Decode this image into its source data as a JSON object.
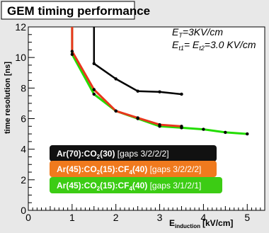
{
  "chart_data": {
    "type": "line",
    "title": "GEM timing performance",
    "xlabel_main": "E",
    "xlabel_sub": "induction",
    "xlabel_unit": "[kV/cm]",
    "ylabel": "time resolution [ns]",
    "xlim": [
      0,
      5.4
    ],
    "ylim": [
      0,
      12
    ],
    "x_ticks": [
      "0",
      "1",
      "2",
      "3",
      "4",
      "5"
    ],
    "y_ticks": [
      "0",
      "2",
      "4",
      "6",
      "8",
      "10",
      "12"
    ],
    "grid": false,
    "annotation": {
      "line1_E": "E",
      "line1_sub": "T",
      "line1_val": "=3KV/cm",
      "line2_E1": "E",
      "line2_sub1": "t1",
      "line2_mid": "= E",
      "line2_sub2": "t2",
      "line2_val": "=3.0 KV/cm"
    },
    "series": [
      {
        "color": "#000000",
        "x": [
          1.5,
          1.5,
          2.0,
          2.5,
          3.0,
          3.5
        ],
        "y": [
          12.0,
          9.6,
          8.6,
          7.8,
          7.75,
          7.6
        ],
        "legend": {
          "text_a": "Ar(70):CO",
          "sub_a": "2",
          "text_b": "(30)",
          "text_c": " [gaps 3/2/2/2]",
          "box_color": "#111111"
        }
      },
      {
        "color": "#e8361c",
        "x": [
          1.0,
          1.0,
          1.5,
          2.0,
          2.5,
          3.0,
          3.5
        ],
        "y": [
          12.0,
          10.4,
          7.9,
          6.5,
          6.05,
          5.6,
          5.5
        ],
        "legend": {
          "text_a": "Ar(45):CO",
          "sub_a": "2",
          "text_b": "(15):CF",
          "sub_b": "4",
          "text_c": "(40)",
          "text_d": " [gaps 3/2/2/2]",
          "box_color": "#f07a1e"
        }
      },
      {
        "color": "#22dd00",
        "x": [
          1.0,
          1.0,
          1.5,
          2.0,
          2.5,
          3.0,
          3.5,
          4.0,
          4.5,
          5.0
        ],
        "y": [
          12.0,
          10.2,
          7.6,
          6.5,
          6.0,
          5.5,
          5.4,
          5.3,
          5.1,
          5.0
        ],
        "legend": {
          "text_a": "Ar(45):CO",
          "sub_a": "2",
          "text_b": "(15):CF",
          "sub_b": "4",
          "text_c": "(40)",
          "text_d": " [gaps 3/1/2/1]",
          "box_color": "#3ccc14"
        }
      }
    ]
  }
}
